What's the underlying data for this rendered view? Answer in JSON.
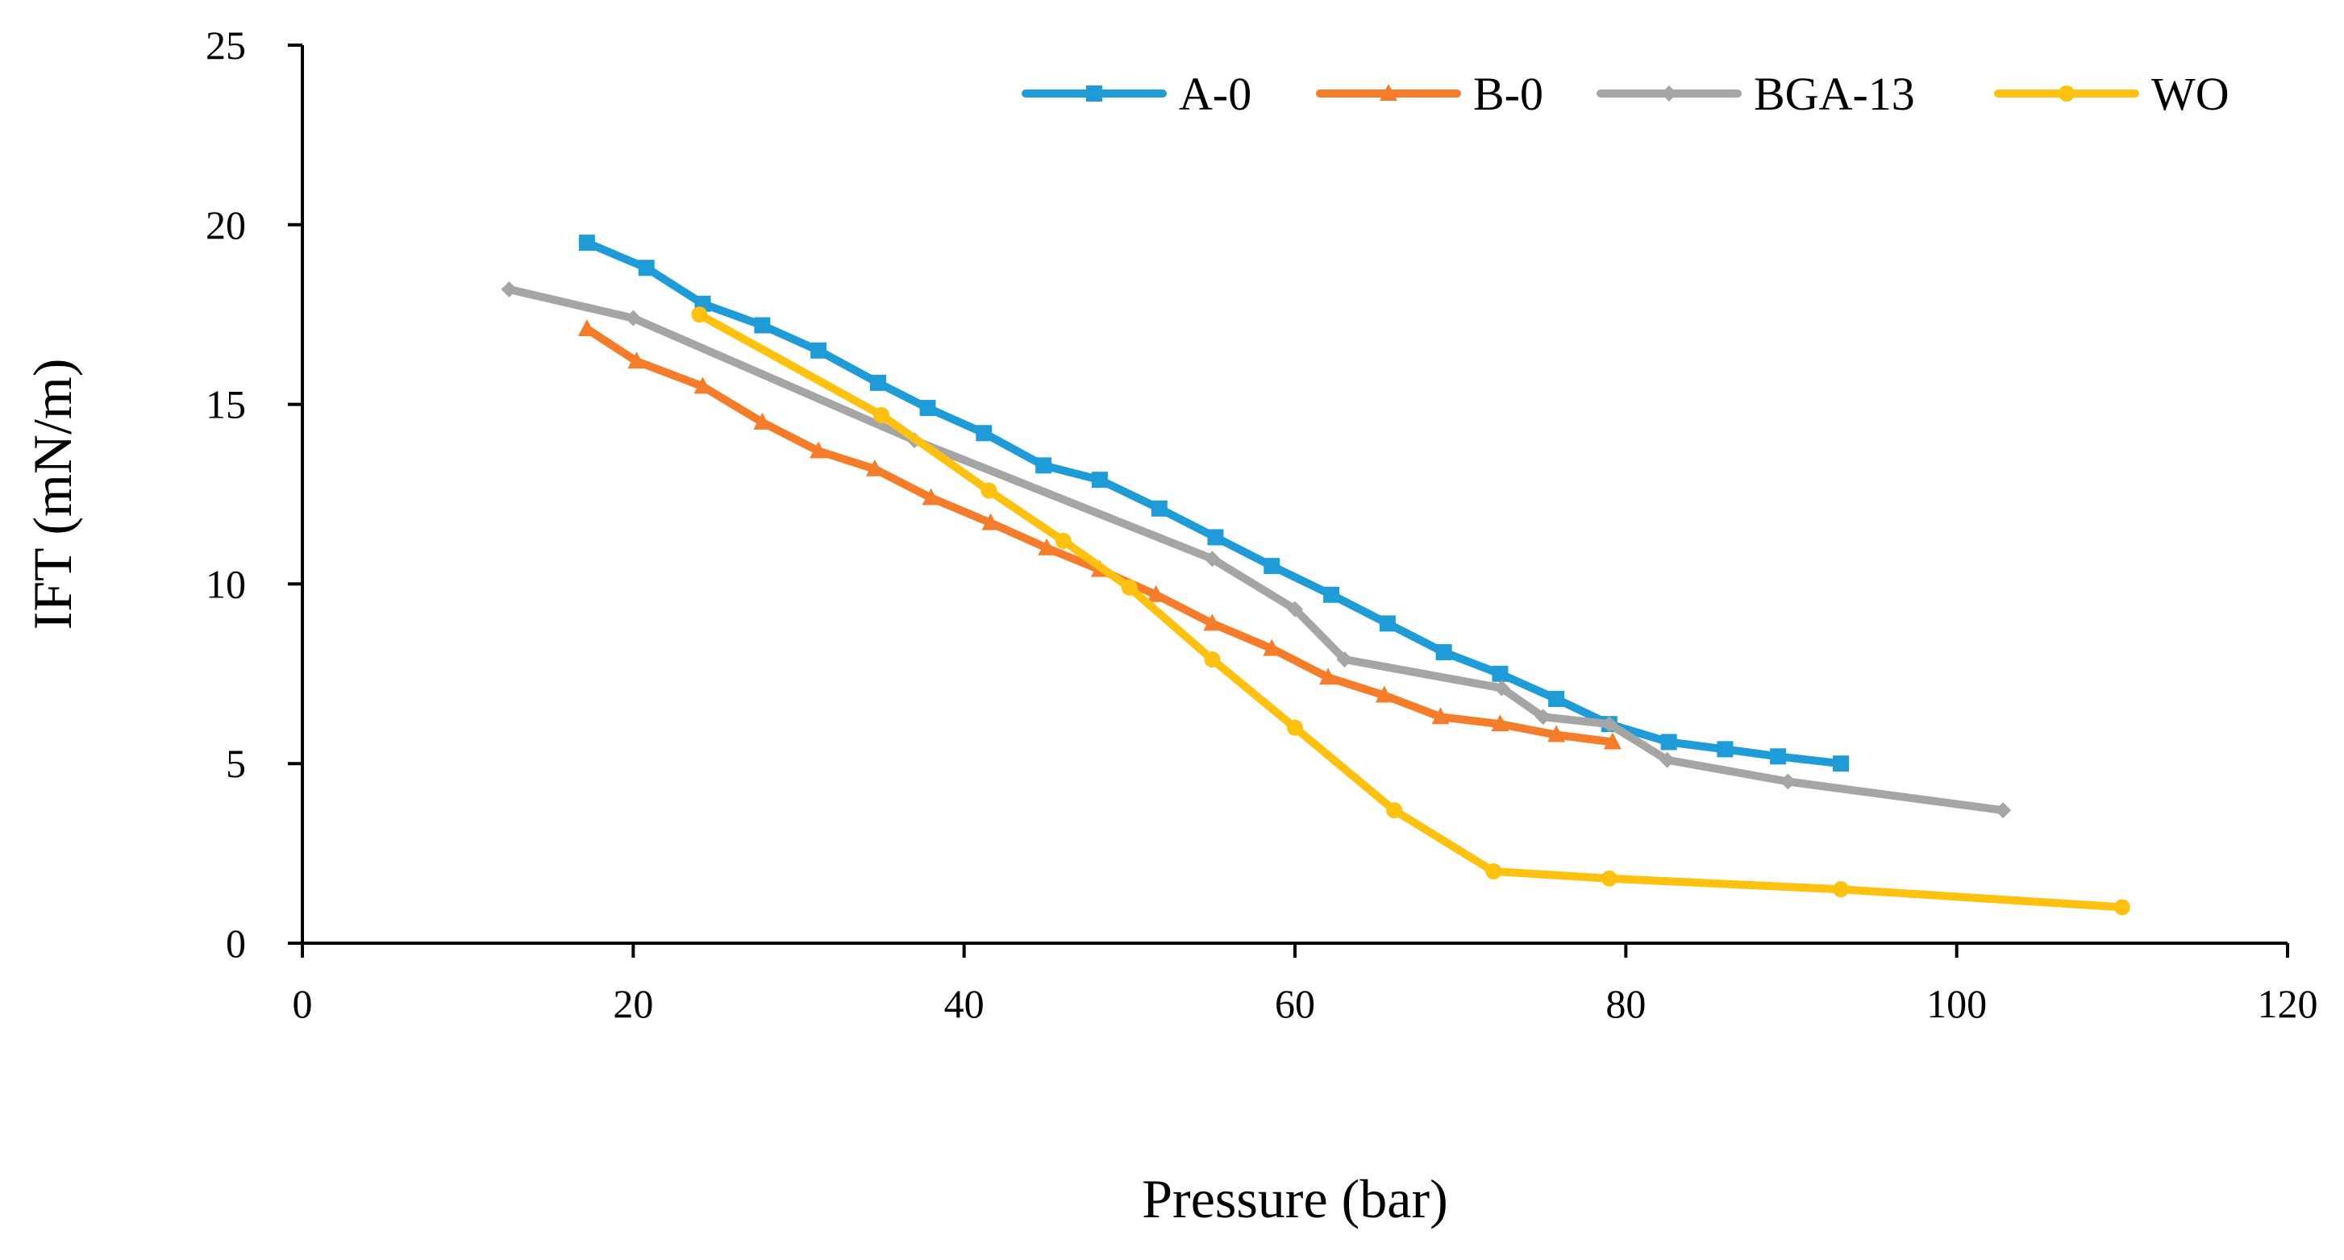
{
  "chart_data": {
    "type": "line",
    "title": "",
    "xlabel": "Pressure (bar)",
    "ylabel": "IFT (mN/m)",
    "xlim": [
      0,
      120
    ],
    "ylim": [
      0,
      25
    ],
    "xticks": [
      0,
      20,
      40,
      60,
      80,
      100,
      120
    ],
    "yticks": [
      0,
      5,
      10,
      15,
      20,
      25
    ],
    "grid": false,
    "legend_position": "top-right",
    "series": [
      {
        "name": "A-0",
        "color": "#1f9bd7",
        "marker": "square",
        "x": [
          17.2,
          20.8,
          24.2,
          27.8,
          31.2,
          34.8,
          37.8,
          41.2,
          44.8,
          48.2,
          51.8,
          55.2,
          58.6,
          62.2,
          65.6,
          69.0,
          72.4,
          75.8,
          79.0,
          82.6,
          86.0,
          89.2,
          93.0
        ],
        "y": [
          19.5,
          18.8,
          17.8,
          17.2,
          16.5,
          15.6,
          14.9,
          14.2,
          13.3,
          12.9,
          12.1,
          11.3,
          10.5,
          9.7,
          8.9,
          8.1,
          7.5,
          6.8,
          6.1,
          5.6,
          5.4,
          5.2,
          5.0
        ]
      },
      {
        "name": "B-0",
        "color": "#f47c2a",
        "marker": "triangle",
        "x": [
          17.2,
          20.2,
          24.2,
          27.8,
          31.2,
          34.6,
          38.0,
          41.6,
          45.0,
          48.2,
          51.6,
          55.0,
          58.6,
          62.0,
          65.4,
          68.8,
          72.4,
          75.8,
          79.2
        ],
        "y": [
          17.1,
          16.2,
          15.5,
          14.5,
          13.7,
          13.2,
          12.4,
          11.7,
          11.0,
          10.4,
          9.7,
          8.9,
          8.2,
          7.4,
          6.9,
          6.3,
          6.1,
          5.8,
          5.6
        ]
      },
      {
        "name": "BGA-13",
        "color": "#a5a5a5",
        "marker": "diamond",
        "x": [
          12.5,
          20.0,
          37.0,
          55.0,
          60.0,
          63.0,
          72.5,
          75.0,
          79.0,
          82.5,
          89.8,
          102.8
        ],
        "y": [
          18.2,
          17.4,
          14.0,
          10.7,
          9.3,
          7.9,
          7.1,
          6.3,
          6.1,
          5.1,
          4.5,
          3.7
        ]
      },
      {
        "name": "WO",
        "color": "#fec10f",
        "marker": "circle",
        "x": [
          24.0,
          35.0,
          41.5,
          46.0,
          50.0,
          55.0,
          60.0,
          66.0,
          72.0,
          79.0,
          93.0,
          110.0
        ],
        "y": [
          17.5,
          14.7,
          12.6,
          11.2,
          9.9,
          7.9,
          6.0,
          3.7,
          2.0,
          1.8,
          1.5,
          1.0
        ]
      }
    ]
  }
}
